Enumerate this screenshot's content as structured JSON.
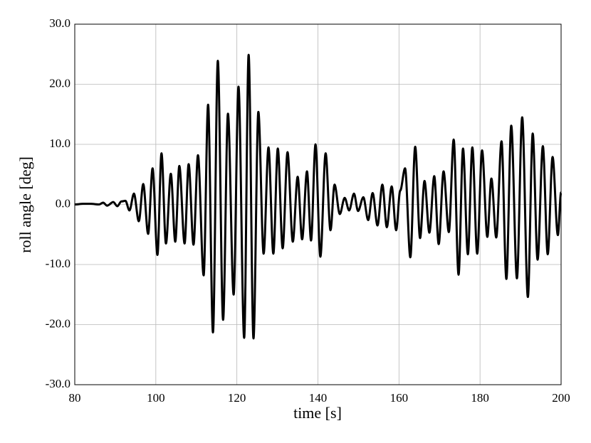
{
  "chart_data": {
    "type": "line",
    "xlabel": "time [s]",
    "ylabel": "roll angle [deg]",
    "xlim": [
      80,
      200
    ],
    "xticks": [
      80,
      100,
      120,
      140,
      160,
      180,
      200
    ],
    "ylim": [
      -30,
      30
    ],
    "yticks": [
      {
        "value": -30,
        "label": "-30.0"
      },
      {
        "value": -20,
        "label": "-20.0"
      },
      {
        "value": -10,
        "label": "-10.0"
      },
      {
        "value": 0,
        "label": "0.0"
      },
      {
        "value": 10,
        "label": "10.0"
      },
      {
        "value": 20,
        "label": "20.0"
      },
      {
        "value": 30,
        "label": "30.0"
      }
    ],
    "grid": true,
    "series": [
      {
        "color": "#000000",
        "x": [
          80,
          82,
          84,
          86,
          87,
          88,
          89.5,
          90.5,
          91.5,
          92.5,
          93.5,
          94.6,
          95.8,
          96.9,
          98.1,
          99.2,
          100.4,
          101.4,
          102.5,
          103.7,
          104.8,
          105.8,
          107.1,
          108.1,
          109.3,
          110.4,
          111.8,
          112.9,
          114.1,
          115.3,
          116.6,
          117.8,
          119.2,
          120.4,
          121.8,
          122.9,
          124.1,
          125.3,
          126.6,
          127.8,
          129.0,
          130.1,
          131.3,
          132.5,
          133.8,
          135.0,
          136.1,
          137.3,
          138.3,
          139.4,
          140.6,
          141.9,
          143.1,
          144.1,
          145.4,
          146.6,
          147.7,
          148.9,
          149.9,
          151.2,
          152.4,
          153.5,
          154.7,
          155.9,
          157.0,
          158.2,
          159.3,
          160.3,
          161.5,
          162.8,
          164.0,
          165.2,
          166.3,
          167.5,
          168.7,
          169.8,
          171.0,
          172.3,
          173.5,
          174.7,
          175.8,
          177.0,
          178.1,
          179.3,
          180.5,
          181.8,
          182.8,
          184.0,
          185.3,
          186.5,
          187.7,
          189.1,
          190.4,
          191.8,
          193.0,
          194.2,
          195.5,
          196.7,
          197.9,
          199.2,
          200
        ],
        "values": [
          0,
          0.1,
          0.1,
          0,
          0.3,
          -0.2,
          0.4,
          -0.3,
          0.5,
          0.6,
          -1.0,
          1.8,
          -2.8,
          3.4,
          -4.9,
          6.0,
          -8.4,
          8.5,
          -6.5,
          5.1,
          -6.2,
          6.4,
          -6.5,
          6.7,
          -6.7,
          8.2,
          -11.8,
          16.6,
          -21.3,
          23.9,
          -19.2,
          15.1,
          -15.0,
          19.6,
          -22.2,
          24.9,
          -22.3,
          15.4,
          -8.2,
          9.5,
          -8.2,
          9.3,
          -7.3,
          8.7,
          -6.2,
          4.6,
          -5.8,
          5.5,
          -6.0,
          10.0,
          -8.7,
          8.5,
          -4.3,
          3.3,
          -1.6,
          1.1,
          -1.0,
          1.8,
          -1.1,
          1.2,
          -2.6,
          1.9,
          -3.5,
          3.3,
          -3.8,
          3.0,
          -4.3,
          2.3,
          6.0,
          -8.8,
          9.6,
          -5.6,
          3.9,
          -4.7,
          4.7,
          -6.6,
          5.5,
          -4.6,
          10.8,
          -11.7,
          9.3,
          -8.3,
          9.5,
          -8.2,
          9.0,
          -5.4,
          4.3,
          -5.5,
          10.5,
          -12.4,
          13.1,
          -12.3,
          14.5,
          -15.4,
          11.8,
          -9.2,
          9.7,
          -8.3,
          7.9,
          -5.1,
          2.0
        ]
      }
    ]
  }
}
